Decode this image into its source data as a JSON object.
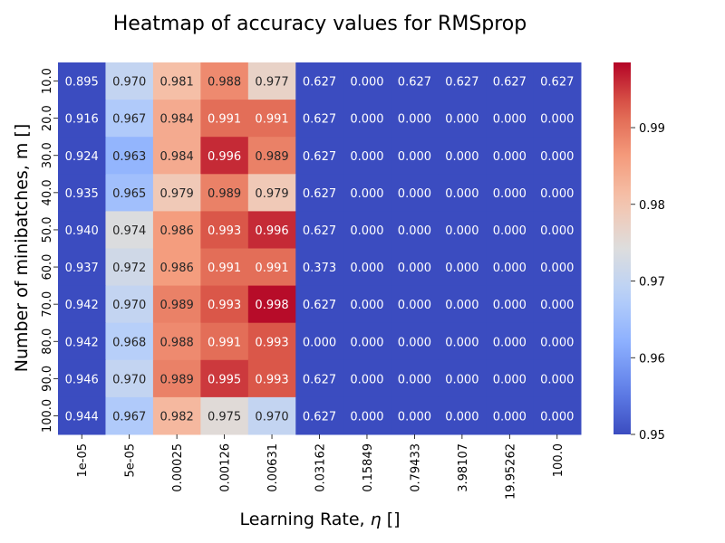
{
  "chart_data": {
    "type": "heatmap",
    "title": "Heatmap of accuracy values for RMSprop",
    "xlabel_prefix": "Learning Rate, ",
    "xlabel_symbol": "η",
    "xlabel_suffix": " []",
    "ylabel": "Number of minibatches, m []",
    "x_categories": [
      "1e-05",
      "5e-05",
      "0.00025",
      "0.00126",
      "0.00631",
      "0.03162",
      "0.15849",
      "0.79433",
      "3.98107",
      "19.95262",
      "100.0"
    ],
    "y_categories": [
      "10.0",
      "20.0",
      "30.0",
      "40.0",
      "50.0",
      "60.0",
      "70.0",
      "80.0",
      "90.0",
      "100.0"
    ],
    "values": [
      [
        0.895,
        0.97,
        0.981,
        0.988,
        0.977,
        0.627,
        0.0,
        0.627,
        0.627,
        0.627,
        0.627
      ],
      [
        0.916,
        0.967,
        0.984,
        0.991,
        0.991,
        0.627,
        0.0,
        0.0,
        0.0,
        0.0,
        0.0
      ],
      [
        0.924,
        0.963,
        0.984,
        0.996,
        0.989,
        0.627,
        0.0,
        0.0,
        0.0,
        0.0,
        0.0
      ],
      [
        0.935,
        0.965,
        0.979,
        0.989,
        0.979,
        0.627,
        0.0,
        0.0,
        0.0,
        0.0,
        0.0
      ],
      [
        0.94,
        0.974,
        0.986,
        0.993,
        0.996,
        0.627,
        0.0,
        0.0,
        0.0,
        0.0,
        0.0
      ],
      [
        0.937,
        0.972,
        0.986,
        0.991,
        0.991,
        0.373,
        0.0,
        0.0,
        0.0,
        0.0,
        0.0
      ],
      [
        0.942,
        0.97,
        0.989,
        0.993,
        0.998,
        0.627,
        0.0,
        0.0,
        0.0,
        0.0,
        0.0
      ],
      [
        0.942,
        0.968,
        0.988,
        0.991,
        0.993,
        0.0,
        0.0,
        0.0,
        0.0,
        0.0,
        0.0
      ],
      [
        0.946,
        0.97,
        0.989,
        0.995,
        0.993,
        0.627,
        0.0,
        0.0,
        0.0,
        0.0,
        0.0
      ],
      [
        0.944,
        0.967,
        0.982,
        0.975,
        0.97,
        0.627,
        0.0,
        0.0,
        0.0,
        0.0,
        0.0
      ]
    ],
    "colormap": "coolwarm",
    "vmin": 0.95,
    "vmax": 0.9985,
    "colorbar_ticks": [
      0.95,
      0.96,
      0.97,
      0.98,
      0.99
    ],
    "colorbar_tick_labels": [
      "0.95",
      "0.96",
      "0.97",
      "0.98",
      "0.99"
    ],
    "annotation_format": "0.000",
    "legend": "colorbar-right",
    "grid": false
  }
}
